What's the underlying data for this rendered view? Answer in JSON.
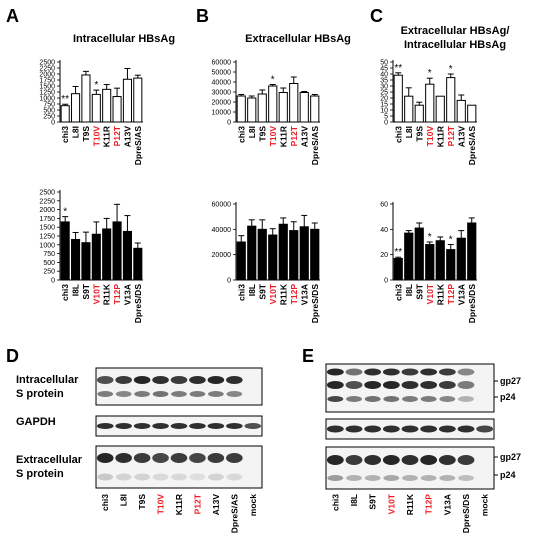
{
  "colors": {
    "highlight": "#ee1c25",
    "text": "#000000",
    "bar_fill_top": "#ffffff",
    "bar_fill_bottom": "#000000",
    "band": "#1a1a1a"
  },
  "panel_labels": {
    "A": "A",
    "B": "B",
    "C": "C",
    "D": "D",
    "E": "E"
  },
  "chart_data": [
    {
      "id": "A-top",
      "panel": "A",
      "type": "bar",
      "style": "open",
      "title": [
        "Intracellular HBsAg"
      ],
      "categories": [
        "chi3",
        "L8I",
        "T9S",
        "T10V",
        "K11R",
        "P12T",
        "A13V",
        "DpreS/AS"
      ],
      "highlight": [
        "T10V",
        "P12T"
      ],
      "values": [
        680,
        1180,
        1960,
        1150,
        1360,
        1060,
        1780,
        1830
      ],
      "errors": [
        60,
        300,
        150,
        180,
        200,
        350,
        450,
        120
      ],
      "sig": [
        "**",
        "",
        "",
        "*",
        "",
        "",
        "",
        ""
      ],
      "yticks": [
        0,
        250,
        500,
        750,
        1000,
        1250,
        1500,
        1750,
        2000,
        2250,
        2500
      ],
      "ylim": [
        0,
        2500
      ]
    },
    {
      "id": "B-top",
      "panel": "B",
      "type": "bar",
      "style": "open",
      "title": [
        "Extracellular HBsAg"
      ],
      "categories": [
        "chi3",
        "L8I",
        "T9S",
        "T10V",
        "K11R",
        "P12T",
        "A13V",
        "DpreS/AS"
      ],
      "highlight": [
        "T10V",
        "P12T"
      ],
      "values": [
        26000,
        24000,
        28000,
        36000,
        29500,
        38500,
        29500,
        26000
      ],
      "errors": [
        1500,
        2000,
        4000,
        1500,
        4500,
        6500,
        1000,
        1500
      ],
      "sig": [
        "",
        "",
        "",
        "*",
        "",
        "",
        "",
        ""
      ],
      "yticks": [
        0,
        10000,
        20000,
        30000,
        40000,
        50000,
        60000
      ],
      "ylim": [
        0,
        60000
      ]
    },
    {
      "id": "C-top",
      "panel": "C",
      "type": "bar",
      "style": "open",
      "title": [
        "Extracellular HBsAg/",
        "Intracellular HBsAg"
      ],
      "categories": [
        "chi3",
        "L8I",
        "T9S",
        "T10V",
        "K11R",
        "P12T",
        "A13V",
        "DpreS/AS"
      ],
      "highlight": [
        "T10V",
        "P12T"
      ],
      "values": [
        39,
        21.5,
        14,
        31.5,
        21.5,
        37,
        18,
        14
      ],
      "errors": [
        2,
        7,
        2.5,
        5,
        0,
        3,
        4.5,
        0
      ],
      "sig": [
        "**",
        "",
        "",
        "*",
        "",
        "*",
        "",
        ""
      ],
      "yticks": [
        0,
        5,
        10,
        15,
        20,
        25,
        30,
        35,
        40,
        45,
        50
      ],
      "ylim": [
        0,
        50
      ]
    },
    {
      "id": "A-bottom",
      "panel": "A",
      "type": "bar",
      "style": "filled",
      "categories": [
        "chi3",
        "I8L",
        "S9T",
        "V10T",
        "R11K",
        "T12P",
        "V13A",
        "DpreS/DS"
      ],
      "highlight": [
        "V10T",
        "T12P"
      ],
      "values": [
        1650,
        1150,
        1060,
        1300,
        1450,
        1650,
        1380,
        900
      ],
      "errors": [
        150,
        200,
        300,
        350,
        300,
        500,
        450,
        150
      ],
      "sig": [
        "*",
        "",
        "",
        "",
        "",
        "",
        "",
        ""
      ],
      "yticks": [
        0,
        250,
        500,
        750,
        1000,
        1250,
        1500,
        1750,
        2000,
        2250,
        2500
      ],
      "ylim": [
        0,
        2500
      ]
    },
    {
      "id": "B-bottom",
      "panel": "B",
      "type": "bar",
      "style": "filled",
      "categories": [
        "chi3",
        "I8L",
        "S9T",
        "V10T",
        "R11K",
        "T12P",
        "V13A",
        "DpreS/DS"
      ],
      "highlight": [
        "V10T",
        "T12P"
      ],
      "values": [
        30000,
        42500,
        40000,
        35500,
        44000,
        39000,
        42000,
        40000
      ],
      "errors": [
        5000,
        5000,
        7500,
        5000,
        5000,
        7000,
        9000,
        5000
      ],
      "sig": [
        "",
        "",
        "",
        "",
        "",
        "",
        "",
        ""
      ],
      "yticks": [
        0,
        20000,
        40000,
        60000
      ],
      "ylim": [
        0,
        60000
      ]
    },
    {
      "id": "C-bottom",
      "panel": "C",
      "type": "bar",
      "style": "filled",
      "categories": [
        "chi3",
        "I8L",
        "S9T",
        "V10T",
        "R11K",
        "T12P",
        "V13A",
        "DpreS/DS"
      ],
      "highlight": [
        "V10T",
        "T12P"
      ],
      "values": [
        17,
        37,
        41,
        28,
        31,
        24,
        33,
        45
      ],
      "errors": [
        1,
        2,
        4,
        2,
        3,
        4,
        6,
        4
      ],
      "sig": [
        "**",
        "",
        "",
        "*",
        "",
        "*",
        "",
        ""
      ],
      "yticks": [
        0,
        20,
        40,
        60
      ],
      "ylim": [
        0,
        60
      ]
    }
  ],
  "blot_D": {
    "rows": [
      {
        "label": [
          "Intracellular",
          "S protein"
        ]
      },
      {
        "label": [
          "GAPDH"
        ]
      },
      {
        "label": [
          "Extracellular",
          "S protein"
        ]
      }
    ],
    "lanes": [
      "chi3",
      "L8I",
      "T9S",
      "T10V",
      "K11R",
      "P12T",
      "A13V",
      "DpreS/AS",
      "mock"
    ],
    "highlight": [
      "T10V",
      "P12T"
    ]
  },
  "blot_E": {
    "markers_top": [
      "gp27",
      "p24"
    ],
    "markers_bottom": [
      "gp27",
      "p24"
    ],
    "lanes": [
      "chi3",
      "I8L",
      "S9T",
      "V10T",
      "R11K",
      "T12P",
      "V13A",
      "DpreS/DS",
      "mock"
    ],
    "highlight": [
      "V10T",
      "T12P"
    ]
  }
}
